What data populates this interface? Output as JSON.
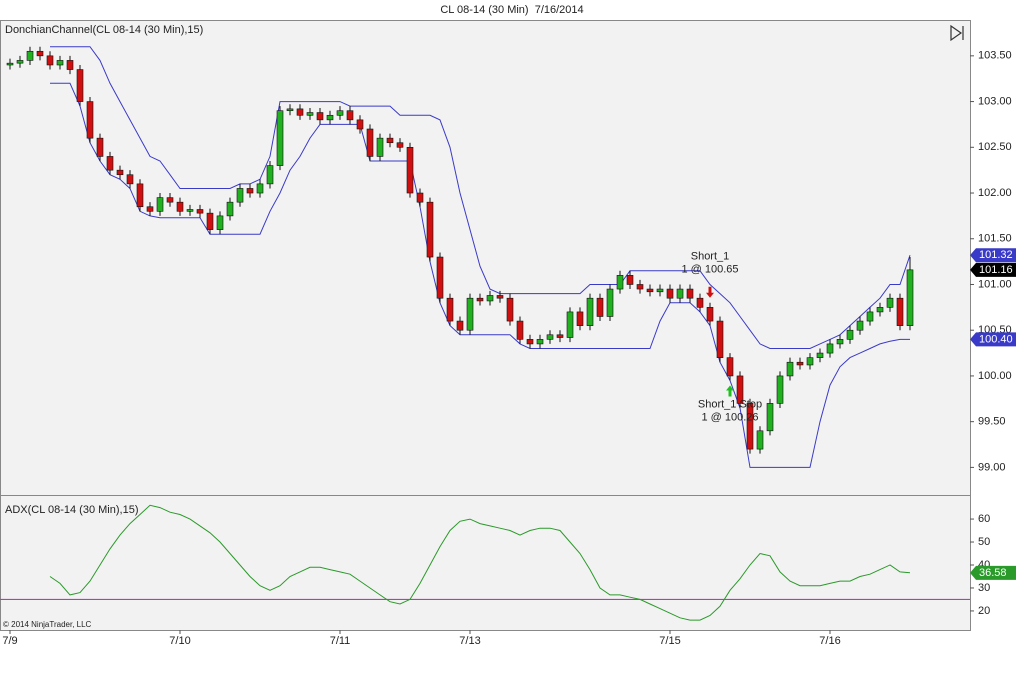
{
  "title": "CL 08-14 (30 Min)  7/16/2014",
  "copyright": "© 2014 NinjaTrader, LLC",
  "chart_data": [
    {
      "type": "candlestick",
      "title": "DonchianChannel(CL 08-14 (30 Min),15)",
      "up_color": "#20b020",
      "down_color": "#d01010",
      "last_label": "101.16",
      "open": [
        103.4,
        103.42,
        103.45,
        103.55,
        103.5,
        103.4,
        103.45,
        103.35,
        103.0,
        102.6,
        102.4,
        102.25,
        102.2,
        102.1,
        101.85,
        101.8,
        101.95,
        101.9,
        101.8,
        101.82,
        101.78,
        101.6,
        101.75,
        101.9,
        102.05,
        102.0,
        102.1,
        102.3,
        102.9,
        102.92,
        102.85,
        102.88,
        102.8,
        102.85,
        102.9,
        102.8,
        102.7,
        102.4,
        102.6,
        102.55,
        102.5,
        102.0,
        101.9,
        101.3,
        100.85,
        100.6,
        100.5,
        100.85,
        100.82,
        100.88,
        100.85,
        100.6,
        100.4,
        100.35,
        100.4,
        100.45,
        100.42,
        100.7,
        100.55,
        100.85,
        100.65,
        100.95,
        101.1,
        101.0,
        100.95,
        100.92,
        100.95,
        100.85,
        100.95,
        100.85,
        100.75,
        100.6,
        100.2,
        100.0,
        99.7,
        99.2,
        99.4,
        99.7,
        100.0,
        100.15,
        100.12,
        100.2,
        100.25,
        100.35,
        100.4,
        100.5,
        100.6,
        100.7,
        100.75,
        100.85,
        100.55
      ],
      "high": [
        103.47,
        103.5,
        103.6,
        103.6,
        103.55,
        103.5,
        103.5,
        103.4,
        103.05,
        102.65,
        102.45,
        102.3,
        102.25,
        102.15,
        101.9,
        102.0,
        102.0,
        101.95,
        101.87,
        101.87,
        101.83,
        101.8,
        101.95,
        102.1,
        102.1,
        102.15,
        102.35,
        102.95,
        102.97,
        102.97,
        102.93,
        102.93,
        102.9,
        102.95,
        102.95,
        102.85,
        102.75,
        102.65,
        102.65,
        102.6,
        102.55,
        102.05,
        101.95,
        101.35,
        100.9,
        100.65,
        100.9,
        100.9,
        100.93,
        100.93,
        100.9,
        100.65,
        100.45,
        100.45,
        100.5,
        100.5,
        100.75,
        100.75,
        100.9,
        100.9,
        101.0,
        101.15,
        101.15,
        101.05,
        101.0,
        101.0,
        101.0,
        101.0,
        101.0,
        100.9,
        100.8,
        100.65,
        100.25,
        100.05,
        99.75,
        99.45,
        99.75,
        100.05,
        100.2,
        100.2,
        100.25,
        100.3,
        100.4,
        100.45,
        100.55,
        100.65,
        100.75,
        100.8,
        100.9,
        100.9,
        101.3
      ],
      "low": [
        103.35,
        103.37,
        103.4,
        103.45,
        103.35,
        103.35,
        103.3,
        102.95,
        102.55,
        102.35,
        102.2,
        102.15,
        102.05,
        101.8,
        101.75,
        101.75,
        101.85,
        101.75,
        101.75,
        101.73,
        101.55,
        101.55,
        101.7,
        101.85,
        101.95,
        101.95,
        102.05,
        102.25,
        102.85,
        102.8,
        102.8,
        102.75,
        102.75,
        102.8,
        102.75,
        102.65,
        102.35,
        102.35,
        102.5,
        102.45,
        101.95,
        101.85,
        101.25,
        100.8,
        100.55,
        100.45,
        100.45,
        100.77,
        100.77,
        100.8,
        100.55,
        100.35,
        100.3,
        100.3,
        100.35,
        100.37,
        100.37,
        100.5,
        100.5,
        100.6,
        100.6,
        100.9,
        100.95,
        100.9,
        100.87,
        100.87,
        100.8,
        100.8,
        100.8,
        100.7,
        100.55,
        100.15,
        99.95,
        99.65,
        99.15,
        99.15,
        99.35,
        99.65,
        99.95,
        100.07,
        100.07,
        100.15,
        100.2,
        100.3,
        100.35,
        100.45,
        100.55,
        100.65,
        100.7,
        100.5,
        100.5
      ],
      "close": [
        103.42,
        103.45,
        103.55,
        103.5,
        103.4,
        103.45,
        103.35,
        103.0,
        102.6,
        102.4,
        102.25,
        102.2,
        102.1,
        101.85,
        101.8,
        101.95,
        101.9,
        101.8,
        101.82,
        101.78,
        101.6,
        101.75,
        101.9,
        102.05,
        102.0,
        102.1,
        102.3,
        102.9,
        102.92,
        102.85,
        102.88,
        102.8,
        102.85,
        102.9,
        102.8,
        102.7,
        102.4,
        102.6,
        102.55,
        102.5,
        102.0,
        101.9,
        101.3,
        100.85,
        100.6,
        100.5,
        100.85,
        100.82,
        100.88,
        100.85,
        100.6,
        100.4,
        100.35,
        100.4,
        100.45,
        100.42,
        100.7,
        100.55,
        100.85,
        100.65,
        100.95,
        101.1,
        101.0,
        100.95,
        100.92,
        100.95,
        100.85,
        100.95,
        100.85,
        100.75,
        100.6,
        100.2,
        100.0,
        99.7,
        99.2,
        99.4,
        99.7,
        100.0,
        100.15,
        100.12,
        100.2,
        100.25,
        100.35,
        100.4,
        100.5,
        100.6,
        100.7,
        100.75,
        100.85,
        100.55,
        101.16
      ],
      "series": [
        {
          "color": "#3a3ac8",
          "last_label": "101.32",
          "values": [
            null,
            null,
            null,
            null,
            103.6,
            103.6,
            103.6,
            103.6,
            103.6,
            103.45,
            103.2,
            103.0,
            102.8,
            102.6,
            102.4,
            102.35,
            102.2,
            102.05,
            102.05,
            102.05,
            102.05,
            102.05,
            102.05,
            102.1,
            102.1,
            102.15,
            102.4,
            103.0,
            103.0,
            103.0,
            103.0,
            103.0,
            103.0,
            103.0,
            102.95,
            102.95,
            102.95,
            102.95,
            102.95,
            102.85,
            102.85,
            102.85,
            102.85,
            102.8,
            102.5,
            102.0,
            101.6,
            101.2,
            100.95,
            100.9,
            100.9,
            100.9,
            100.9,
            100.9,
            100.9,
            100.9,
            100.9,
            100.9,
            101.0,
            101.0,
            101.0,
            101.0,
            101.15,
            101.15,
            101.15,
            101.15,
            101.15,
            101.15,
            101.15,
            101.15,
            101.0,
            100.9,
            100.8,
            100.65,
            100.5,
            100.35,
            100.3,
            100.3,
            100.3,
            100.3,
            100.3,
            100.35,
            100.4,
            100.45,
            100.55,
            100.65,
            100.75,
            100.85,
            101.0,
            101.0,
            101.32
          ]
        },
        {
          "color": "#3a3ac8",
          "last_label": "100.40",
          "values": [
            null,
            null,
            null,
            null,
            103.2,
            103.2,
            103.2,
            102.95,
            102.55,
            102.35,
            102.2,
            102.15,
            102.05,
            101.8,
            101.75,
            101.73,
            101.73,
            101.73,
            101.73,
            101.73,
            101.55,
            101.55,
            101.55,
            101.55,
            101.55,
            101.55,
            101.8,
            102.0,
            102.25,
            102.4,
            102.6,
            102.75,
            102.75,
            102.75,
            102.75,
            102.75,
            102.35,
            102.35,
            102.35,
            102.35,
            102.35,
            101.85,
            101.25,
            100.8,
            100.55,
            100.45,
            100.45,
            100.45,
            100.45,
            100.45,
            100.45,
            100.35,
            100.3,
            100.3,
            100.3,
            100.3,
            100.3,
            100.3,
            100.3,
            100.3,
            100.3,
            100.3,
            100.3,
            100.3,
            100.3,
            100.6,
            100.8,
            100.8,
            100.8,
            100.7,
            100.55,
            100.15,
            99.95,
            99.65,
            99.0,
            99.0,
            99.0,
            99.0,
            99.0,
            99.0,
            99.0,
            99.5,
            99.9,
            100.1,
            100.2,
            100.25,
            100.3,
            100.35,
            100.38,
            100.4,
            100.4
          ]
        }
      ],
      "signals": [
        {
          "index": 70,
          "side": "above",
          "color": "#d01010",
          "label": [
            "Short_1",
            "1 @ 100.65"
          ]
        },
        {
          "index": 72,
          "side": "below",
          "color": "#20c020",
          "label": [
            "Short_1 Stop",
            "1 @ 100.26"
          ]
        }
      ],
      "ylim": [
        98.72,
        103.87
      ],
      "yticks": [
        {
          "value": 99,
          "label": "99.00"
        },
        {
          "value": 99.5,
          "label": "99.50"
        },
        {
          "value": 100,
          "label": "100.00"
        },
        {
          "value": 100.5,
          "label": "100.50"
        },
        {
          "value": 101,
          "label": "101.00"
        },
        {
          "value": 101.5,
          "label": "101.50"
        },
        {
          "value": 102,
          "label": "102.00"
        },
        {
          "value": 102.5,
          "label": "102.50"
        },
        {
          "value": 103,
          "label": "103.00"
        },
        {
          "value": 103.5,
          "label": "103.50"
        }
      ]
    },
    {
      "type": "line",
      "title": "ADX(CL 08-14 (30 Min),15)",
      "series": [
        {
          "color": "#2a9a2a",
          "last_label": "36.58",
          "values": [
            null,
            null,
            null,
            null,
            35,
            32,
            27,
            28,
            33,
            40,
            47,
            53,
            58,
            62,
            66,
            65,
            63,
            62,
            60,
            57,
            54,
            50,
            45,
            40,
            35,
            31,
            29,
            31,
            35,
            37,
            39,
            39,
            38,
            37,
            36,
            33,
            30,
            27,
            24,
            23,
            25,
            32,
            40,
            48,
            55,
            59,
            60,
            58,
            57,
            56,
            55,
            53,
            55,
            56,
            56,
            55,
            50,
            45,
            38,
            30,
            27,
            27,
            26,
            25,
            23,
            21,
            19,
            17,
            16,
            16,
            18,
            22,
            29,
            34,
            40,
            45,
            44,
            37,
            33,
            31,
            31,
            31,
            32,
            33,
            33,
            35,
            36,
            38,
            40,
            37,
            36.58
          ]
        }
      ],
      "hline": {
        "value": 25,
        "color": "#b040b0"
      },
      "ylim": [
        11.7,
        69.6
      ],
      "yticks": [
        20,
        30,
        40,
        50,
        60
      ],
      "xticks": [
        {
          "value": 0,
          "label": "7/9"
        },
        {
          "value": 17,
          "label": "7/10"
        },
        {
          "value": 33,
          "label": "7/11"
        },
        {
          "value": 46,
          "label": "7/13"
        },
        {
          "value": 66,
          "label": "7/15"
        },
        {
          "value": 82,
          "label": "7/16"
        }
      ]
    }
  ]
}
